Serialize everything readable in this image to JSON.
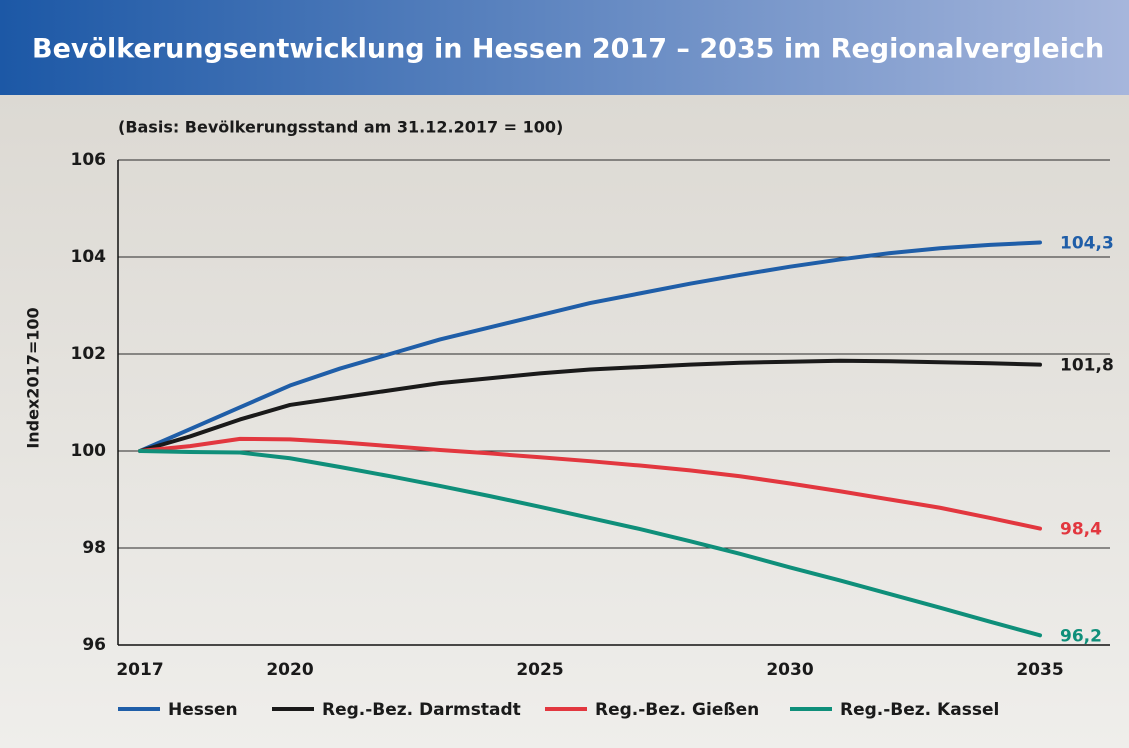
{
  "chart_data": {
    "type": "line",
    "title": "Bevölkerungsentwicklung in Hessen 2017 – 2035 im Regionalvergleich",
    "subtitle": "(Basis: Bevölkerungsstand am 31.12.2017 = 100)",
    "y_label": "Index2017=100",
    "x": [
      2017,
      2018,
      2019,
      2020,
      2021,
      2022,
      2023,
      2024,
      2025,
      2026,
      2027,
      2028,
      2029,
      2030,
      2031,
      2032,
      2033,
      2034,
      2035
    ],
    "xlim": [
      2016.56,
      2036.4
    ],
    "xticks": [
      2017,
      2020,
      2025,
      2030,
      2035
    ],
    "ylim": [
      96,
      106
    ],
    "yticks": [
      96,
      98,
      100,
      102,
      104,
      106
    ],
    "grid": true,
    "legend": "bottom",
    "series": [
      {
        "name": "Hessen",
        "color": "#1f5ea8",
        "values": [
          100.0,
          100.45,
          100.9,
          101.35,
          101.7,
          102.0,
          102.3,
          102.55,
          102.8,
          103.05,
          103.25,
          103.45,
          103.63,
          103.8,
          103.95,
          104.08,
          104.18,
          104.25,
          104.3
        ],
        "value_labels": [
          null,
          null,
          null,
          null,
          null,
          null,
          null,
          null,
          null,
          null,
          null,
          null,
          null,
          null,
          null,
          null,
          null,
          null,
          "104,3"
        ]
      },
      {
        "name": "Reg.-Bez. Darmstadt",
        "color": "#1a1a1a",
        "values": [
          100.0,
          100.3,
          100.65,
          100.95,
          101.1,
          101.25,
          101.4,
          101.5,
          101.6,
          101.68,
          101.73,
          101.78,
          101.82,
          101.84,
          101.86,
          101.85,
          101.83,
          101.81,
          101.78
        ],
        "value_labels": [
          null,
          null,
          null,
          null,
          null,
          null,
          null,
          null,
          null,
          null,
          null,
          null,
          null,
          null,
          null,
          null,
          null,
          null,
          "101,8"
        ]
      },
      {
        "name": "Reg.-Bez. Gießen",
        "color": "#e2373f",
        "values": [
          100.0,
          100.1,
          100.25,
          100.24,
          100.18,
          100.1,
          100.02,
          99.95,
          99.87,
          99.79,
          99.7,
          99.6,
          99.48,
          99.33,
          99.17,
          99.0,
          98.83,
          98.62,
          98.4
        ],
        "value_labels": [
          null,
          null,
          null,
          null,
          null,
          null,
          null,
          null,
          null,
          null,
          null,
          null,
          null,
          null,
          null,
          null,
          null,
          null,
          "98,4"
        ]
      },
      {
        "name": "Reg.-Bez. Kassel",
        "color": "#0f8f7a",
        "values": [
          100.0,
          99.98,
          99.97,
          99.85,
          99.67,
          99.48,
          99.28,
          99.07,
          98.85,
          98.62,
          98.39,
          98.14,
          97.88,
          97.6,
          97.33,
          97.05,
          96.77,
          96.48,
          96.2
        ],
        "value_labels": [
          null,
          null,
          null,
          null,
          null,
          null,
          null,
          null,
          null,
          null,
          null,
          null,
          null,
          null,
          null,
          null,
          null,
          null,
          "96,2"
        ]
      }
    ]
  }
}
